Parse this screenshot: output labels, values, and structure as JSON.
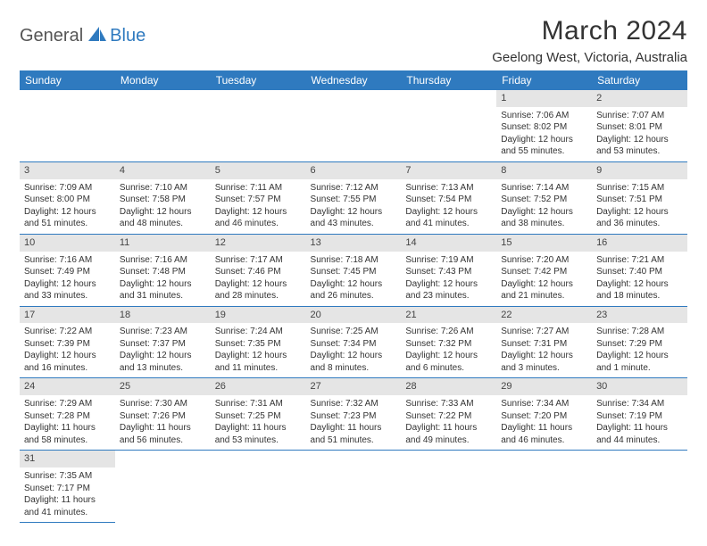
{
  "logo": {
    "text1": "General",
    "text2": "Blue"
  },
  "title": "March 2024",
  "location": "Geelong West, Victoria, Australia",
  "colors": {
    "header_bg": "#2f7abf",
    "header_text": "#ffffff",
    "daynum_bg": "#e5e5e5",
    "rule": "#2f7abf"
  },
  "weekdays": [
    "Sunday",
    "Monday",
    "Tuesday",
    "Wednesday",
    "Thursday",
    "Friday",
    "Saturday"
  ],
  "weeks": [
    [
      null,
      null,
      null,
      null,
      null,
      {
        "n": "1",
        "sr": "7:06 AM",
        "ss": "8:02 PM",
        "dl": "12 hours and 55 minutes."
      },
      {
        "n": "2",
        "sr": "7:07 AM",
        "ss": "8:01 PM",
        "dl": "12 hours and 53 minutes."
      }
    ],
    [
      {
        "n": "3",
        "sr": "7:09 AM",
        "ss": "8:00 PM",
        "dl": "12 hours and 51 minutes."
      },
      {
        "n": "4",
        "sr": "7:10 AM",
        "ss": "7:58 PM",
        "dl": "12 hours and 48 minutes."
      },
      {
        "n": "5",
        "sr": "7:11 AM",
        "ss": "7:57 PM",
        "dl": "12 hours and 46 minutes."
      },
      {
        "n": "6",
        "sr": "7:12 AM",
        "ss": "7:55 PM",
        "dl": "12 hours and 43 minutes."
      },
      {
        "n": "7",
        "sr": "7:13 AM",
        "ss": "7:54 PM",
        "dl": "12 hours and 41 minutes."
      },
      {
        "n": "8",
        "sr": "7:14 AM",
        "ss": "7:52 PM",
        "dl": "12 hours and 38 minutes."
      },
      {
        "n": "9",
        "sr": "7:15 AM",
        "ss": "7:51 PM",
        "dl": "12 hours and 36 minutes."
      }
    ],
    [
      {
        "n": "10",
        "sr": "7:16 AM",
        "ss": "7:49 PM",
        "dl": "12 hours and 33 minutes."
      },
      {
        "n": "11",
        "sr": "7:16 AM",
        "ss": "7:48 PM",
        "dl": "12 hours and 31 minutes."
      },
      {
        "n": "12",
        "sr": "7:17 AM",
        "ss": "7:46 PM",
        "dl": "12 hours and 28 minutes."
      },
      {
        "n": "13",
        "sr": "7:18 AM",
        "ss": "7:45 PM",
        "dl": "12 hours and 26 minutes."
      },
      {
        "n": "14",
        "sr": "7:19 AM",
        "ss": "7:43 PM",
        "dl": "12 hours and 23 minutes."
      },
      {
        "n": "15",
        "sr": "7:20 AM",
        "ss": "7:42 PM",
        "dl": "12 hours and 21 minutes."
      },
      {
        "n": "16",
        "sr": "7:21 AM",
        "ss": "7:40 PM",
        "dl": "12 hours and 18 minutes."
      }
    ],
    [
      {
        "n": "17",
        "sr": "7:22 AM",
        "ss": "7:39 PM",
        "dl": "12 hours and 16 minutes."
      },
      {
        "n": "18",
        "sr": "7:23 AM",
        "ss": "7:37 PM",
        "dl": "12 hours and 13 minutes."
      },
      {
        "n": "19",
        "sr": "7:24 AM",
        "ss": "7:35 PM",
        "dl": "12 hours and 11 minutes."
      },
      {
        "n": "20",
        "sr": "7:25 AM",
        "ss": "7:34 PM",
        "dl": "12 hours and 8 minutes."
      },
      {
        "n": "21",
        "sr": "7:26 AM",
        "ss": "7:32 PM",
        "dl": "12 hours and 6 minutes."
      },
      {
        "n": "22",
        "sr": "7:27 AM",
        "ss": "7:31 PM",
        "dl": "12 hours and 3 minutes."
      },
      {
        "n": "23",
        "sr": "7:28 AM",
        "ss": "7:29 PM",
        "dl": "12 hours and 1 minute."
      }
    ],
    [
      {
        "n": "24",
        "sr": "7:29 AM",
        "ss": "7:28 PM",
        "dl": "11 hours and 58 minutes."
      },
      {
        "n": "25",
        "sr": "7:30 AM",
        "ss": "7:26 PM",
        "dl": "11 hours and 56 minutes."
      },
      {
        "n": "26",
        "sr": "7:31 AM",
        "ss": "7:25 PM",
        "dl": "11 hours and 53 minutes."
      },
      {
        "n": "27",
        "sr": "7:32 AM",
        "ss": "7:23 PM",
        "dl": "11 hours and 51 minutes."
      },
      {
        "n": "28",
        "sr": "7:33 AM",
        "ss": "7:22 PM",
        "dl": "11 hours and 49 minutes."
      },
      {
        "n": "29",
        "sr": "7:34 AM",
        "ss": "7:20 PM",
        "dl": "11 hours and 46 minutes."
      },
      {
        "n": "30",
        "sr": "7:34 AM",
        "ss": "7:19 PM",
        "dl": "11 hours and 44 minutes."
      }
    ],
    [
      {
        "n": "31",
        "sr": "7:35 AM",
        "ss": "7:17 PM",
        "dl": "11 hours and 41 minutes."
      },
      null,
      null,
      null,
      null,
      null,
      null
    ]
  ]
}
